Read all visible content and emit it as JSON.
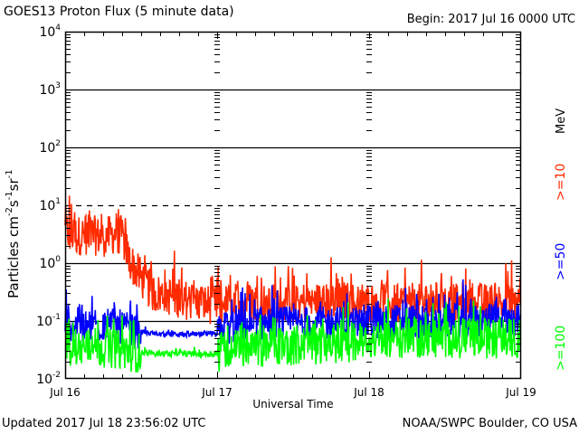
{
  "header": {
    "title": "GOES13 Proton Flux (5 minute data)",
    "begin": "Begin: 2017 Jul 16 0000 UTC"
  },
  "footer": {
    "updated": "Updated 2017 Jul 18 23:56:02 UTC",
    "credit": "NOAA/SWPC Boulder, CO USA"
  },
  "chart_data": {
    "type": "line",
    "title": "GOES13 Proton Flux (5 minute data)",
    "xlabel": "Universal Time",
    "ylabel": "Particles cm-2s-1sr-1",
    "ylabel_parts": {
      "main": "Particles cm",
      "sup1": "-2",
      "mid": "s",
      "sup2": "-1",
      "mid2": "sr",
      "sup3": "-1"
    },
    "yscale": "log",
    "ylim": [
      0.01,
      10000
    ],
    "y_ticks": [
      {
        "value": 10000,
        "base": "10",
        "exp": "4"
      },
      {
        "value": 1000,
        "base": "10",
        "exp": "3"
      },
      {
        "value": 100,
        "base": "10",
        "exp": "2"
      },
      {
        "value": 10,
        "base": "10",
        "exp": "1"
      },
      {
        "value": 1,
        "base": "10",
        "exp": "0"
      },
      {
        "value": 0.1,
        "base": "10",
        "exp": "-1"
      },
      {
        "value": 0.01,
        "base": "10",
        "exp": "-2"
      }
    ],
    "x_unit": "hours since 2017 Jul 16 0000 UTC",
    "xlim": [
      0,
      72
    ],
    "x_ticks": [
      {
        "value": 0,
        "label": "Jul 16"
      },
      {
        "value": 24,
        "label": "Jul 17"
      },
      {
        "value": 48,
        "label": "Jul 18"
      },
      {
        "value": 72,
        "label": "Jul 19"
      }
    ],
    "reference_lines": [
      {
        "value": 1000,
        "style": "solid"
      },
      {
        "value": 100,
        "style": "solid"
      },
      {
        "value": 10,
        "style": "dashed"
      },
      {
        "value": 1,
        "style": "solid"
      },
      {
        "value": 0.1,
        "style": "solid"
      }
    ],
    "energy_unit": "MeV",
    "series": [
      {
        "name": ">=10",
        "color": "#ff2a00",
        "points": [
          [
            0,
            3.5
          ],
          [
            2,
            3.0
          ],
          [
            4,
            3.1
          ],
          [
            6,
            2.8
          ],
          [
            8,
            3.2
          ],
          [
            9,
            3.0
          ],
          [
            9.5,
            2.2
          ],
          [
            10,
            1.2
          ],
          [
            11,
            0.8
          ],
          [
            12,
            0.55
          ],
          [
            13,
            0.4
          ],
          [
            14,
            0.3
          ],
          [
            16,
            0.28
          ],
          [
            18,
            0.25
          ],
          [
            20,
            0.22
          ],
          [
            22,
            0.2
          ],
          [
            24,
            0.19
          ],
          [
            26,
            0.2
          ],
          [
            28,
            0.21
          ],
          [
            30,
            0.22
          ],
          [
            32,
            0.2
          ],
          [
            34,
            0.21
          ],
          [
            36,
            0.2
          ],
          [
            38,
            0.22
          ],
          [
            40,
            0.21
          ],
          [
            42,
            0.2
          ],
          [
            44,
            0.22
          ],
          [
            46,
            0.2
          ],
          [
            48,
            0.21
          ],
          [
            50,
            0.22
          ],
          [
            52,
            0.2
          ],
          [
            54,
            0.21
          ],
          [
            56,
            0.2
          ],
          [
            58,
            0.22
          ],
          [
            60,
            0.21
          ],
          [
            62,
            0.2
          ],
          [
            64,
            0.22
          ],
          [
            66,
            0.2
          ],
          [
            68,
            0.21
          ],
          [
            70,
            0.2
          ],
          [
            72,
            0.22
          ]
        ],
        "noise": 0.35
      },
      {
        "name": ">=50",
        "color": "#0000ff",
        "points": [
          [
            0,
            0.09
          ],
          [
            4,
            0.08
          ],
          [
            8,
            0.085
          ],
          [
            10,
            0.07
          ],
          [
            12,
            0.065
          ],
          [
            14,
            0.06
          ],
          [
            16,
            0.058
          ],
          [
            18,
            0.058
          ],
          [
            20,
            0.058
          ],
          [
            22,
            0.058
          ],
          [
            24,
            0.058
          ],
          [
            25,
            0.075
          ],
          [
            30,
            0.09
          ],
          [
            36,
            0.09
          ],
          [
            42,
            0.09
          ],
          [
            48,
            0.095
          ],
          [
            54,
            0.1
          ],
          [
            60,
            0.1
          ],
          [
            66,
            0.1
          ],
          [
            72,
            0.1
          ]
        ],
        "noise": 0.3
      },
      {
        "name": ">=100",
        "color": "#00ff00",
        "points": [
          [
            0,
            0.035
          ],
          [
            6,
            0.035
          ],
          [
            10,
            0.03
          ],
          [
            12,
            0.028
          ],
          [
            16,
            0.027
          ],
          [
            20,
            0.027
          ],
          [
            24,
            0.027
          ],
          [
            25,
            0.035
          ],
          [
            30,
            0.035
          ],
          [
            36,
            0.038
          ],
          [
            42,
            0.04
          ],
          [
            48,
            0.045
          ],
          [
            54,
            0.05
          ],
          [
            60,
            0.05
          ],
          [
            66,
            0.05
          ],
          [
            72,
            0.05
          ]
        ],
        "noise": 0.35
      }
    ]
  }
}
